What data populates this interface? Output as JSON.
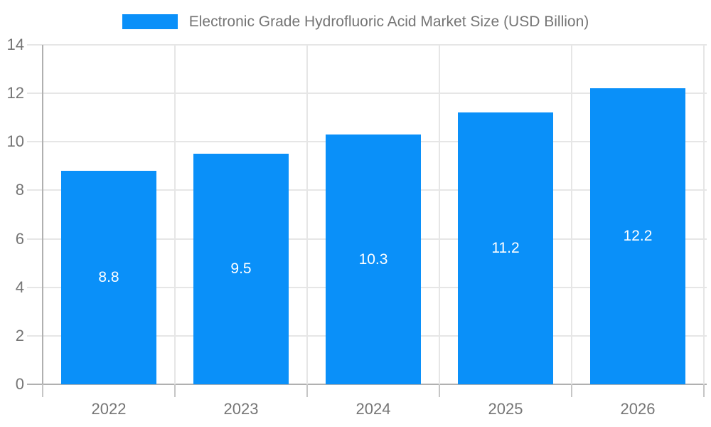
{
  "chart_data": {
    "type": "bar",
    "title": "Electronic Grade Hydrofluoric Acid Market Size (USD Billion)",
    "categories": [
      "2022",
      "2023",
      "2024",
      "2025",
      "2026"
    ],
    "series": [
      {
        "name": "Electronic Grade Hydrofluoric Acid Market Size (USD Billion)",
        "values": [
          8.8,
          9.5,
          10.3,
          11.2,
          12.2
        ],
        "value_labels": [
          "8.8",
          "9.5",
          "10.3",
          "11.2",
          "12.2"
        ]
      }
    ],
    "xlabel": "",
    "ylabel": "",
    "ylim": [
      0,
      14
    ],
    "yticks": [
      0,
      2,
      4,
      6,
      8,
      10,
      12,
      14
    ],
    "grid": true,
    "legend_position": "top-center",
    "colors": {
      "bar": "#0a90f9",
      "bar_label": "#ffffff",
      "title_text": "#757575",
      "tick_label_text": "#757575",
      "axis_line": "#b0b0b0",
      "gridline": "#e6e6e6",
      "tick_mark": "#c6c6c6",
      "background": "#ffffff"
    }
  }
}
